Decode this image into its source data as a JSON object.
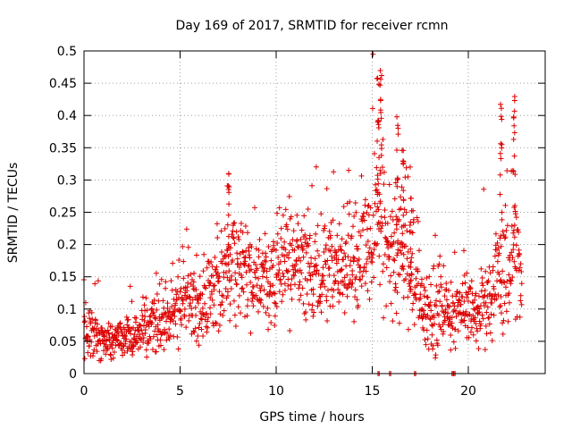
{
  "chart_data": {
    "type": "scatter",
    "title": "Day 169 of 2017, SRMTID for receiver rcmn",
    "xlabel": "GPS time / hours",
    "ylabel": "SRMTID / TECUs",
    "xlim": [
      0,
      24
    ],
    "ylim": [
      0,
      0.5
    ],
    "x_ticks": [
      "0",
      "5",
      "10",
      "15",
      "20"
    ],
    "x_tick_values": [
      0,
      5,
      10,
      15,
      20
    ],
    "y_ticks": [
      "0",
      "0.05",
      "0.1",
      "0.15",
      "0.2",
      "0.25",
      "0.3",
      "0.35",
      "0.4",
      "0.45",
      "0.5"
    ],
    "y_tick_values": [
      0,
      0.05,
      0.1,
      0.15,
      0.2,
      0.25,
      0.3,
      0.35,
      0.4,
      0.45,
      0.5
    ],
    "grid": true,
    "marker": "+",
    "series": [
      {
        "name": "SRMTID",
        "color": "#dd0000",
        "profile": [
          [
            0.0,
            0.06,
            0.03
          ],
          [
            0.5,
            0.065,
            0.03
          ],
          [
            1.0,
            0.055,
            0.025
          ],
          [
            1.5,
            0.05,
            0.025
          ],
          [
            2.0,
            0.055,
            0.025
          ],
          [
            2.5,
            0.06,
            0.03
          ],
          [
            3.0,
            0.065,
            0.03
          ],
          [
            3.5,
            0.075,
            0.035
          ],
          [
            4.0,
            0.08,
            0.04
          ],
          [
            4.5,
            0.085,
            0.04
          ],
          [
            5.0,
            0.11,
            0.05
          ],
          [
            5.5,
            0.12,
            0.05
          ],
          [
            6.0,
            0.11,
            0.05
          ],
          [
            6.5,
            0.12,
            0.05
          ],
          [
            7.0,
            0.14,
            0.06
          ],
          [
            7.5,
            0.17,
            0.08
          ],
          [
            8.0,
            0.17,
            0.07
          ],
          [
            8.5,
            0.15,
            0.06
          ],
          [
            9.0,
            0.14,
            0.06
          ],
          [
            9.5,
            0.14,
            0.06
          ],
          [
            10.0,
            0.15,
            0.07
          ],
          [
            10.5,
            0.18,
            0.07
          ],
          [
            11.0,
            0.17,
            0.07
          ],
          [
            11.5,
            0.16,
            0.07
          ],
          [
            12.0,
            0.15,
            0.07
          ],
          [
            12.5,
            0.16,
            0.07
          ],
          [
            13.0,
            0.16,
            0.07
          ],
          [
            13.5,
            0.17,
            0.07
          ],
          [
            14.0,
            0.17,
            0.07
          ],
          [
            14.5,
            0.18,
            0.08
          ],
          [
            15.0,
            0.2,
            0.09
          ],
          [
            15.3,
            0.3,
            0.12
          ],
          [
            15.8,
            0.17,
            0.07
          ],
          [
            16.5,
            0.2,
            0.08
          ],
          [
            17.0,
            0.18,
            0.08
          ],
          [
            17.5,
            0.11,
            0.05
          ],
          [
            18.0,
            0.1,
            0.05
          ],
          [
            18.5,
            0.1,
            0.05
          ],
          [
            19.0,
            0.09,
            0.04
          ],
          [
            19.5,
            0.1,
            0.04
          ],
          [
            20.0,
            0.1,
            0.04
          ],
          [
            20.5,
            0.1,
            0.04
          ],
          [
            21.0,
            0.11,
            0.05
          ],
          [
            21.5,
            0.15,
            0.07
          ],
          [
            22.0,
            0.16,
            0.08
          ],
          [
            22.5,
            0.2,
            0.1
          ],
          [
            22.8,
            0.12,
            0.05
          ]
        ],
        "zero_points": [
          15.3,
          15.9,
          17.2,
          19.15,
          19.25
        ]
      }
    ]
  }
}
